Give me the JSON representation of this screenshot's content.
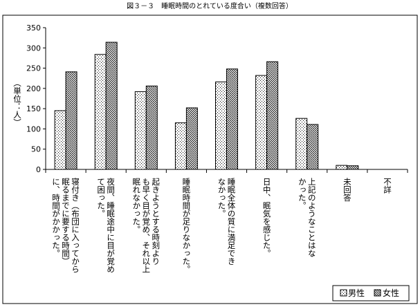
{
  "chart_data": {
    "type": "bar",
    "title": "図３－３　睡眠時間のとれている度合い（複数回答）",
    "ylabel": "（単位：人）",
    "ylim": [
      0,
      350
    ],
    "yticks": [
      0,
      50,
      100,
      150,
      200,
      250,
      300,
      350
    ],
    "grid": false,
    "legend_position": "bottom-right",
    "categories": [
      [
        "寝付き（布団に入ってから",
        "眠るまでに要する時間）",
        "に、時間がかかった。"
      ],
      [
        "夜間、睡眠途中に目が覚め",
        "て困った。"
      ],
      [
        "起きようとする時刻より",
        "も早く目が覚め、それ以上",
        "眠れなかった。"
      ],
      [
        "睡眠時間が足りなかった。"
      ],
      [
        "睡眠全体の質に満足でき",
        "なかった。"
      ],
      [
        "日中、眠気を感じた。"
      ],
      [
        "上記のようなことはな",
        "かった。"
      ],
      [
        "未回答"
      ],
      [
        "不詳"
      ]
    ],
    "series": [
      {
        "name": "男性",
        "values": [
          145,
          284,
          192,
          115,
          216,
          232,
          126,
          10,
          0
        ],
        "pattern": "dots-light"
      },
      {
        "name": "女性",
        "values": [
          241,
          314,
          206,
          152,
          248,
          266,
          111,
          9,
          0
        ],
        "pattern": "dots-dark"
      }
    ]
  }
}
